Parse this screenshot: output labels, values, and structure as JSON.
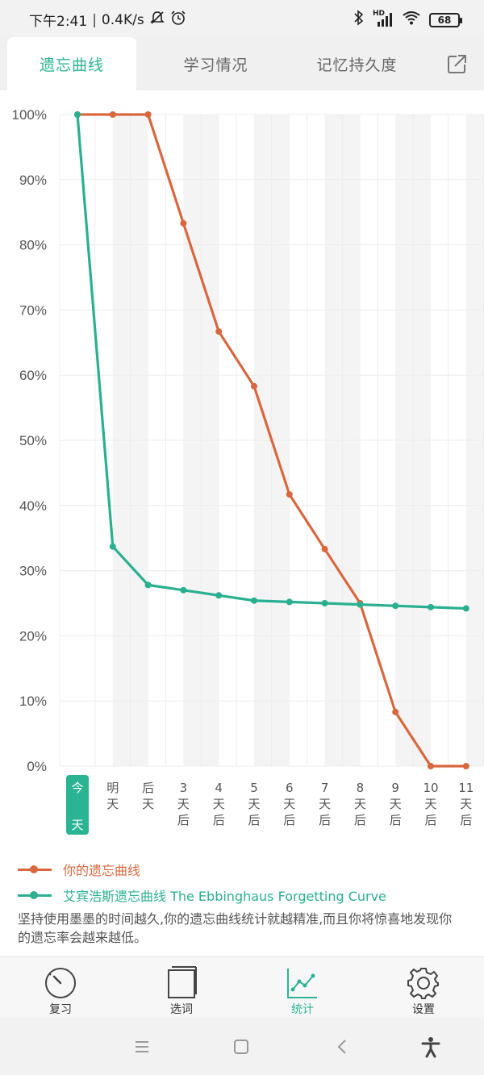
{
  "status": {
    "time": "下午2:41",
    "speed": "0.4K/s",
    "battery": "68",
    "signal_label": "HD"
  },
  "tabs": [
    {
      "label": "遗忘曲线",
      "active": true
    },
    {
      "label": "学习情况",
      "active": false
    },
    {
      "label": "记忆持久度",
      "active": false
    }
  ],
  "icons": {
    "share": "share-icon",
    "mute": "bell-off-icon",
    "alarm": "alarm-icon",
    "bluetooth": "bluetooth-icon",
    "wifi": "wifi-icon"
  },
  "colors": {
    "accent": "#2bb493",
    "user_curve": "#d9673e",
    "ebbinghaus_curve": "#2ab091",
    "band": "#f4f4f4",
    "grid": "#ececec"
  },
  "chart_data": {
    "type": "line",
    "ylim": [
      0,
      100
    ],
    "y_ticks": [
      "0%",
      "10%",
      "20%",
      "30%",
      "40%",
      "50%",
      "60%",
      "70%",
      "80%",
      "90%",
      "100%"
    ],
    "categories": [
      [
        "今",
        "天"
      ],
      [
        "明",
        "天"
      ],
      [
        "后",
        "天"
      ],
      [
        "3",
        "天",
        "后"
      ],
      [
        "4",
        "天",
        "后"
      ],
      [
        "5",
        "天",
        "后"
      ],
      [
        "6",
        "天",
        "后"
      ],
      [
        "7",
        "天",
        "后"
      ],
      [
        "8",
        "天",
        "后"
      ],
      [
        "9",
        "天",
        "后"
      ],
      [
        "10",
        "天",
        "后"
      ],
      [
        "11",
        "天",
        "后"
      ]
    ],
    "highlight_category": 0,
    "series": [
      {
        "name": "你的遗忘曲线",
        "color": "#d9673e",
        "values": [
          100,
          100,
          100,
          83.3,
          66.7,
          58.3,
          41.7,
          33.3,
          25,
          8.3,
          0,
          0
        ]
      },
      {
        "name": "艾宾浩斯遗忘曲线 The Ebbinghaus Forgetting Curve",
        "color": "#2ab091",
        "values": [
          100,
          33.7,
          27.8,
          27.0,
          26.2,
          25.4,
          25.2,
          25.0,
          24.8,
          24.6,
          24.4,
          24.2
        ]
      }
    ]
  },
  "legend": {
    "user_label": "你的遗忘曲线",
    "ebbinghaus_label": "艾宾浩斯遗忘曲线 The Ebbinghaus Forgetting Curve",
    "note": "坚持使用墨墨的时间越久,你的遗忘曲线统计就越精准,而且你将惊喜地发现你的遗忘率会越来越低。"
  },
  "bottom_nav": [
    {
      "label": "复习",
      "icon": "gauge-icon",
      "active": false
    },
    {
      "label": "选词",
      "icon": "book-icon",
      "active": false
    },
    {
      "label": "统计",
      "icon": "stats-chart-icon",
      "active": true
    },
    {
      "label": "设置",
      "icon": "gear-icon",
      "active": false
    }
  ],
  "system_nav": {
    "menu": "menu-icon",
    "home": "home-icon",
    "back": "back-icon",
    "accessibility": "accessibility-icon"
  }
}
